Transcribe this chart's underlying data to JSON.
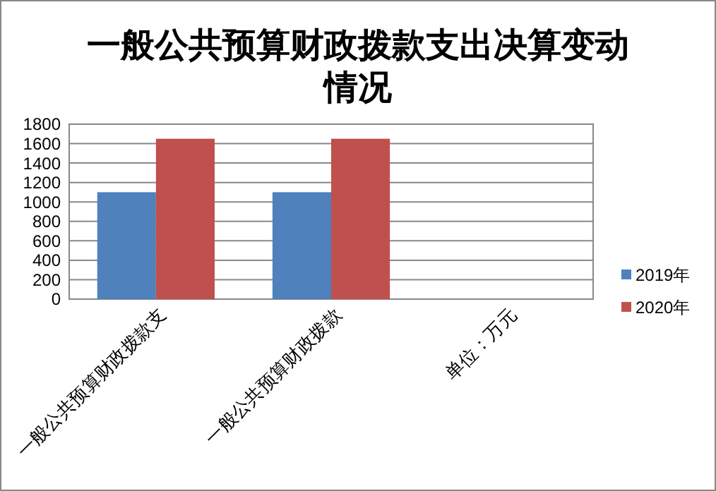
{
  "chart_data": {
    "type": "bar",
    "title": "一般公共预算财政拨款支出决算变动情况",
    "categories": [
      "一般公共预算财政拨款支",
      "一般公共预算财政拨款",
      "单位：万元"
    ],
    "series": [
      {
        "name": "2019年",
        "color": "#4f81bd",
        "values": [
          1100,
          1100,
          null
        ]
      },
      {
        "name": "2020年",
        "color": "#c0504d",
        "values": [
          1650,
          1650,
          null
        ]
      }
    ],
    "ylim": [
      0,
      1800
    ],
    "yticks": [
      0,
      200,
      400,
      600,
      800,
      1000,
      1200,
      1400,
      1600,
      1800
    ],
    "grid": "y",
    "legend": "right"
  }
}
